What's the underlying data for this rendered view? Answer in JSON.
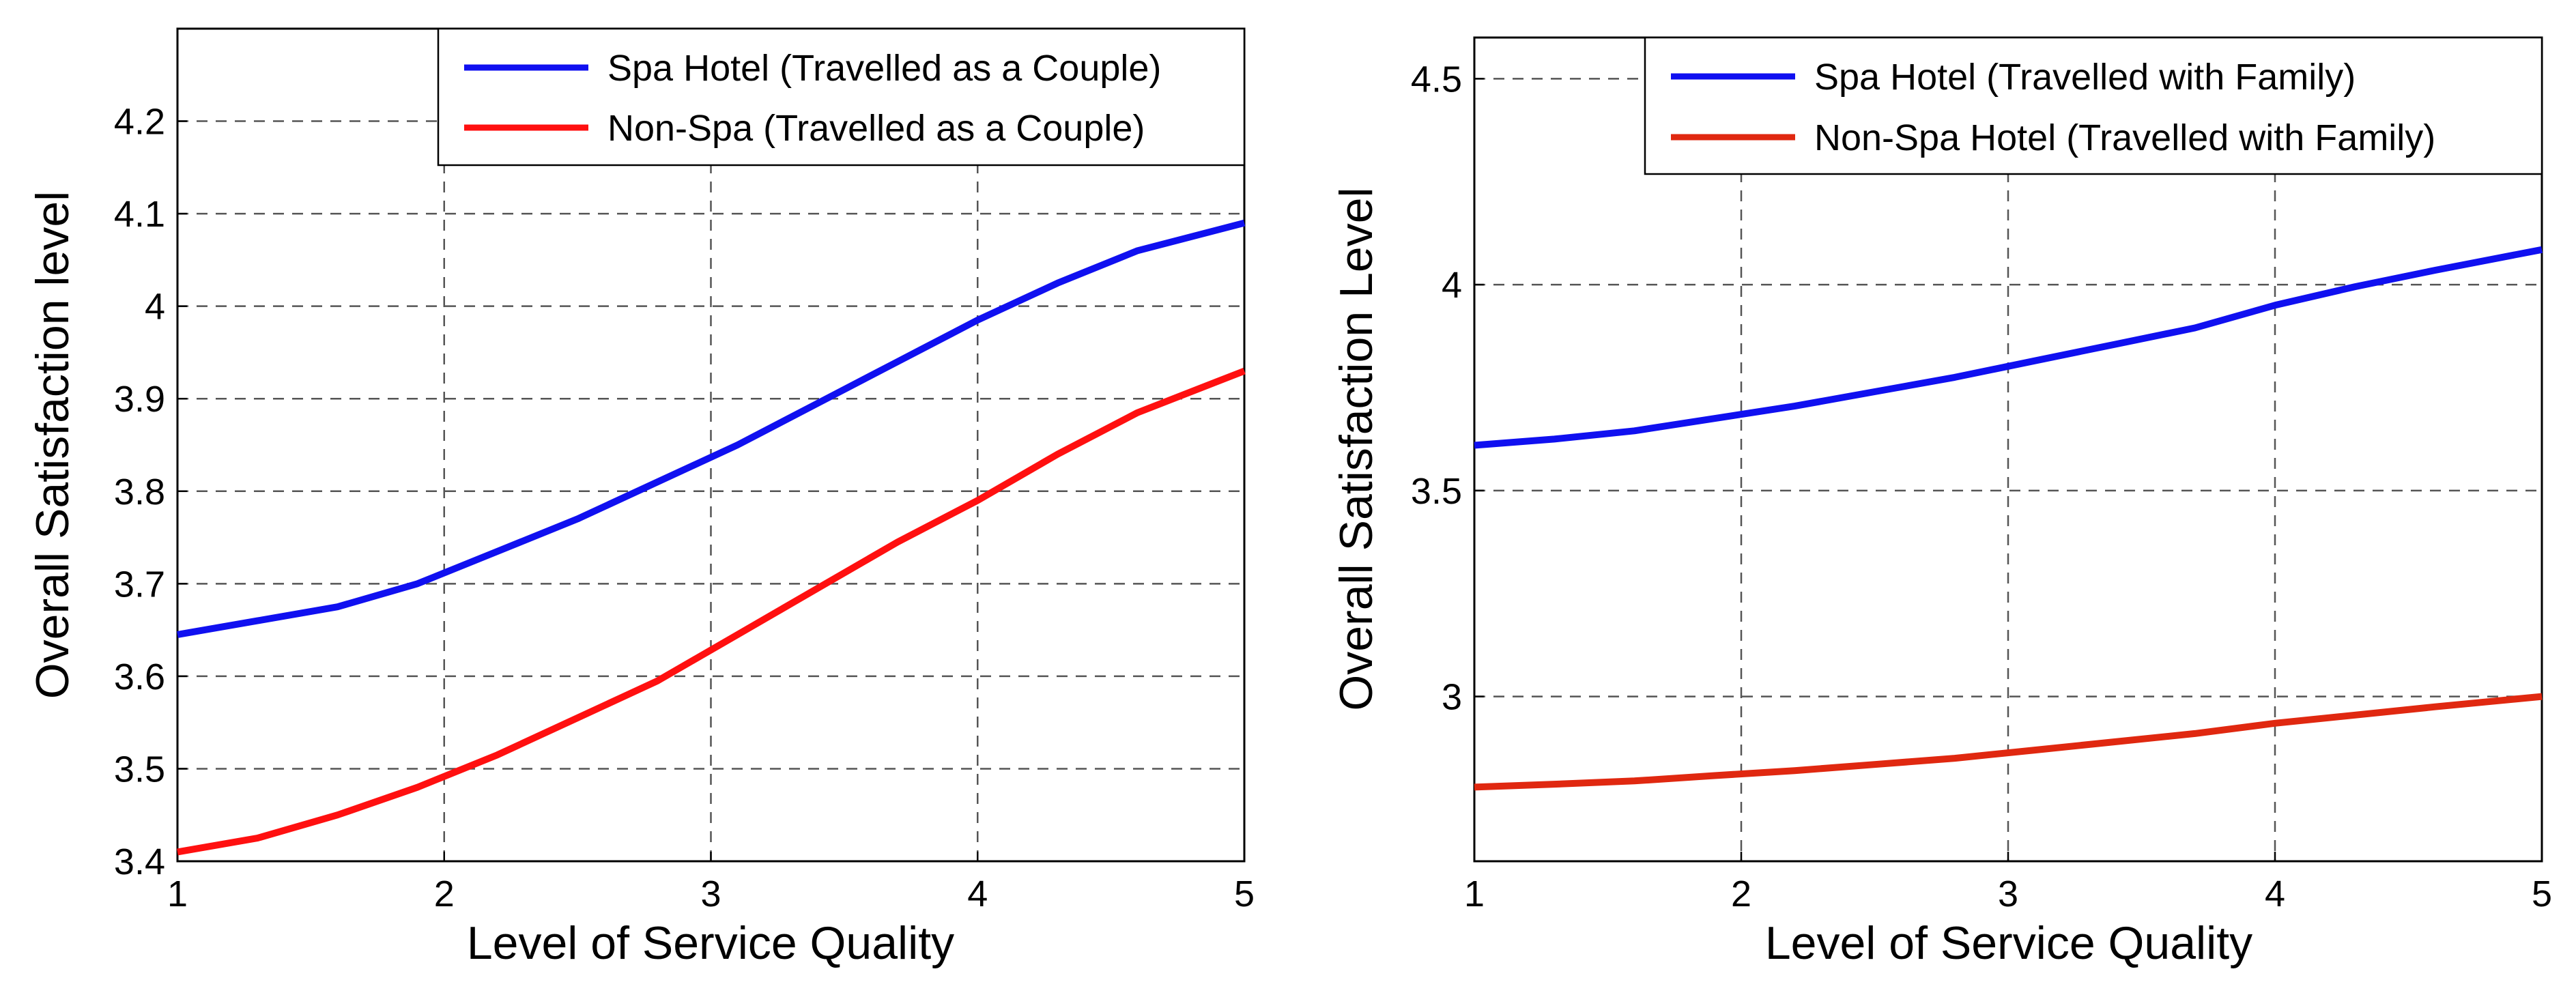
{
  "chart_data": [
    {
      "type": "line",
      "title": "",
      "xlabel": "Level of Service Quality",
      "ylabel": "Overall Satisfaction level",
      "xlim": [
        1,
        5
      ],
      "ylim": [
        3.4,
        4.3
      ],
      "xticks": [
        "1",
        "2",
        "3",
        "4",
        "5"
      ],
      "yticks": [
        "3.4",
        "3.5",
        "3.6",
        "3.7",
        "3.8",
        "3.9",
        "4",
        "4.1",
        "4.2"
      ],
      "ytick_values": [
        3.4,
        3.5,
        3.6,
        3.7,
        3.8,
        3.9,
        4.0,
        4.1,
        4.2
      ],
      "grid": true,
      "legend_position": "top-right",
      "x": [
        1,
        1.3,
        1.6,
        1.9,
        2.2,
        2.5,
        2.8,
        3.1,
        3.4,
        3.7,
        4.0,
        4.3,
        4.6,
        5.0
      ],
      "series": [
        {
          "name": "Spa Hotel (Travelled as a Couple)",
          "color": "#1010f0",
          "values": [
            3.645,
            3.66,
            3.675,
            3.7,
            3.735,
            3.77,
            3.81,
            3.85,
            3.895,
            3.94,
            3.985,
            4.025,
            4.06,
            4.09
          ]
        },
        {
          "name": "Non-Spa (Travelled as a Couple)",
          "color": "#ff1010",
          "values": [
            3.41,
            3.425,
            3.45,
            3.48,
            3.515,
            3.555,
            3.595,
            3.645,
            3.695,
            3.745,
            3.79,
            3.84,
            3.885,
            3.93
          ]
        }
      ]
    },
    {
      "type": "line",
      "title": "",
      "xlabel": "Level of Service Quality",
      "ylabel": "Overall Satisfaction Level",
      "xlim": [
        1,
        5
      ],
      "ylim": [
        2.6,
        4.6
      ],
      "xticks": [
        "1",
        "2",
        "3",
        "4",
        "5"
      ],
      "yticks": [
        "3",
        "3.5",
        "4",
        "4.5"
      ],
      "ytick_values": [
        3.0,
        3.5,
        4.0,
        4.5
      ],
      "grid": true,
      "legend_position": "top-right",
      "x": [
        1,
        1.3,
        1.6,
        1.9,
        2.2,
        2.5,
        2.8,
        3.1,
        3.4,
        3.7,
        4.0,
        4.3,
        4.6,
        5.0
      ],
      "series": [
        {
          "name": "Spa Hotel (Travelled with Family)",
          "color": "#1010f0",
          "values": [
            3.61,
            3.625,
            3.645,
            3.675,
            3.705,
            3.74,
            3.775,
            3.815,
            3.855,
            3.895,
            3.95,
            3.995,
            4.035,
            4.085
          ]
        },
        {
          "name": "Non-Spa Hotel (Travelled with Family)",
          "color": "#e02810",
          "values": [
            2.78,
            2.787,
            2.795,
            2.808,
            2.82,
            2.835,
            2.85,
            2.87,
            2.89,
            2.91,
            2.935,
            2.955,
            2.975,
            3.0
          ]
        }
      ]
    }
  ]
}
